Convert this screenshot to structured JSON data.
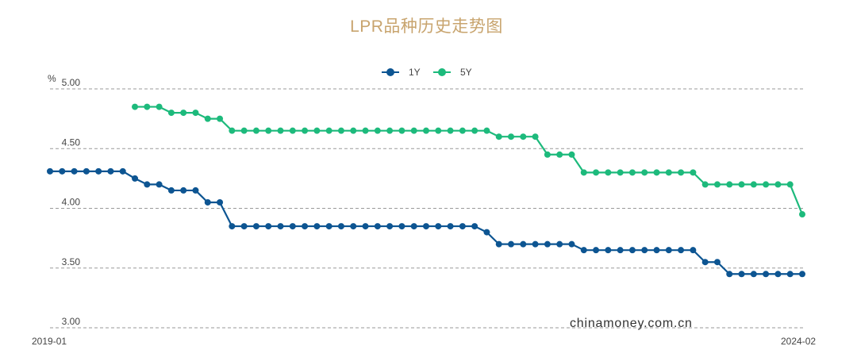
{
  "chart_data": {
    "type": "line",
    "title": "LPR品种历史走势图",
    "ylabel": "%",
    "ylim": [
      3.0,
      5.0
    ],
    "yticks": [
      "5.00",
      "4.50",
      "4.00",
      "3.50",
      "3.00"
    ],
    "yticks_values": [
      5.0,
      4.5,
      4.0,
      3.5,
      3.0
    ],
    "xticks": [
      "2019-01",
      "2024-02"
    ],
    "grid": true,
    "legend_position": "top-center",
    "watermark": "chinamoney.com.cn",
    "colors": {
      "1Y": "#0d5592",
      "5Y": "#1dba7c",
      "grid": "#999999",
      "title": "#c8a46e"
    },
    "series": [
      {
        "name": "1Y",
        "values": [
          4.31,
          4.31,
          4.31,
          4.31,
          4.31,
          4.31,
          4.31,
          4.25,
          4.2,
          4.2,
          4.15,
          4.15,
          4.15,
          4.05,
          4.05,
          3.85,
          3.85,
          3.85,
          3.85,
          3.85,
          3.85,
          3.85,
          3.85,
          3.85,
          3.85,
          3.85,
          3.85,
          3.85,
          3.85,
          3.85,
          3.85,
          3.85,
          3.85,
          3.85,
          3.85,
          3.85,
          3.8,
          3.7,
          3.7,
          3.7,
          3.7,
          3.7,
          3.7,
          3.7,
          3.65,
          3.65,
          3.65,
          3.65,
          3.65,
          3.65,
          3.65,
          3.65,
          3.65,
          3.65,
          3.55,
          3.55,
          3.45,
          3.45,
          3.45,
          3.45,
          3.45,
          3.45,
          3.45
        ]
      },
      {
        "name": "5Y",
        "values": [
          null,
          null,
          null,
          null,
          null,
          null,
          null,
          4.85,
          4.85,
          4.85,
          4.8,
          4.8,
          4.8,
          4.75,
          4.75,
          4.65,
          4.65,
          4.65,
          4.65,
          4.65,
          4.65,
          4.65,
          4.65,
          4.65,
          4.65,
          4.65,
          4.65,
          4.65,
          4.65,
          4.65,
          4.65,
          4.65,
          4.65,
          4.65,
          4.65,
          4.65,
          4.65,
          4.6,
          4.6,
          4.6,
          4.6,
          4.45,
          4.45,
          4.45,
          4.3,
          4.3,
          4.3,
          4.3,
          4.3,
          4.3,
          4.3,
          4.3,
          4.3,
          4.3,
          4.2,
          4.2,
          4.2,
          4.2,
          4.2,
          4.2,
          4.2,
          4.2,
          3.95
        ]
      }
    ]
  }
}
